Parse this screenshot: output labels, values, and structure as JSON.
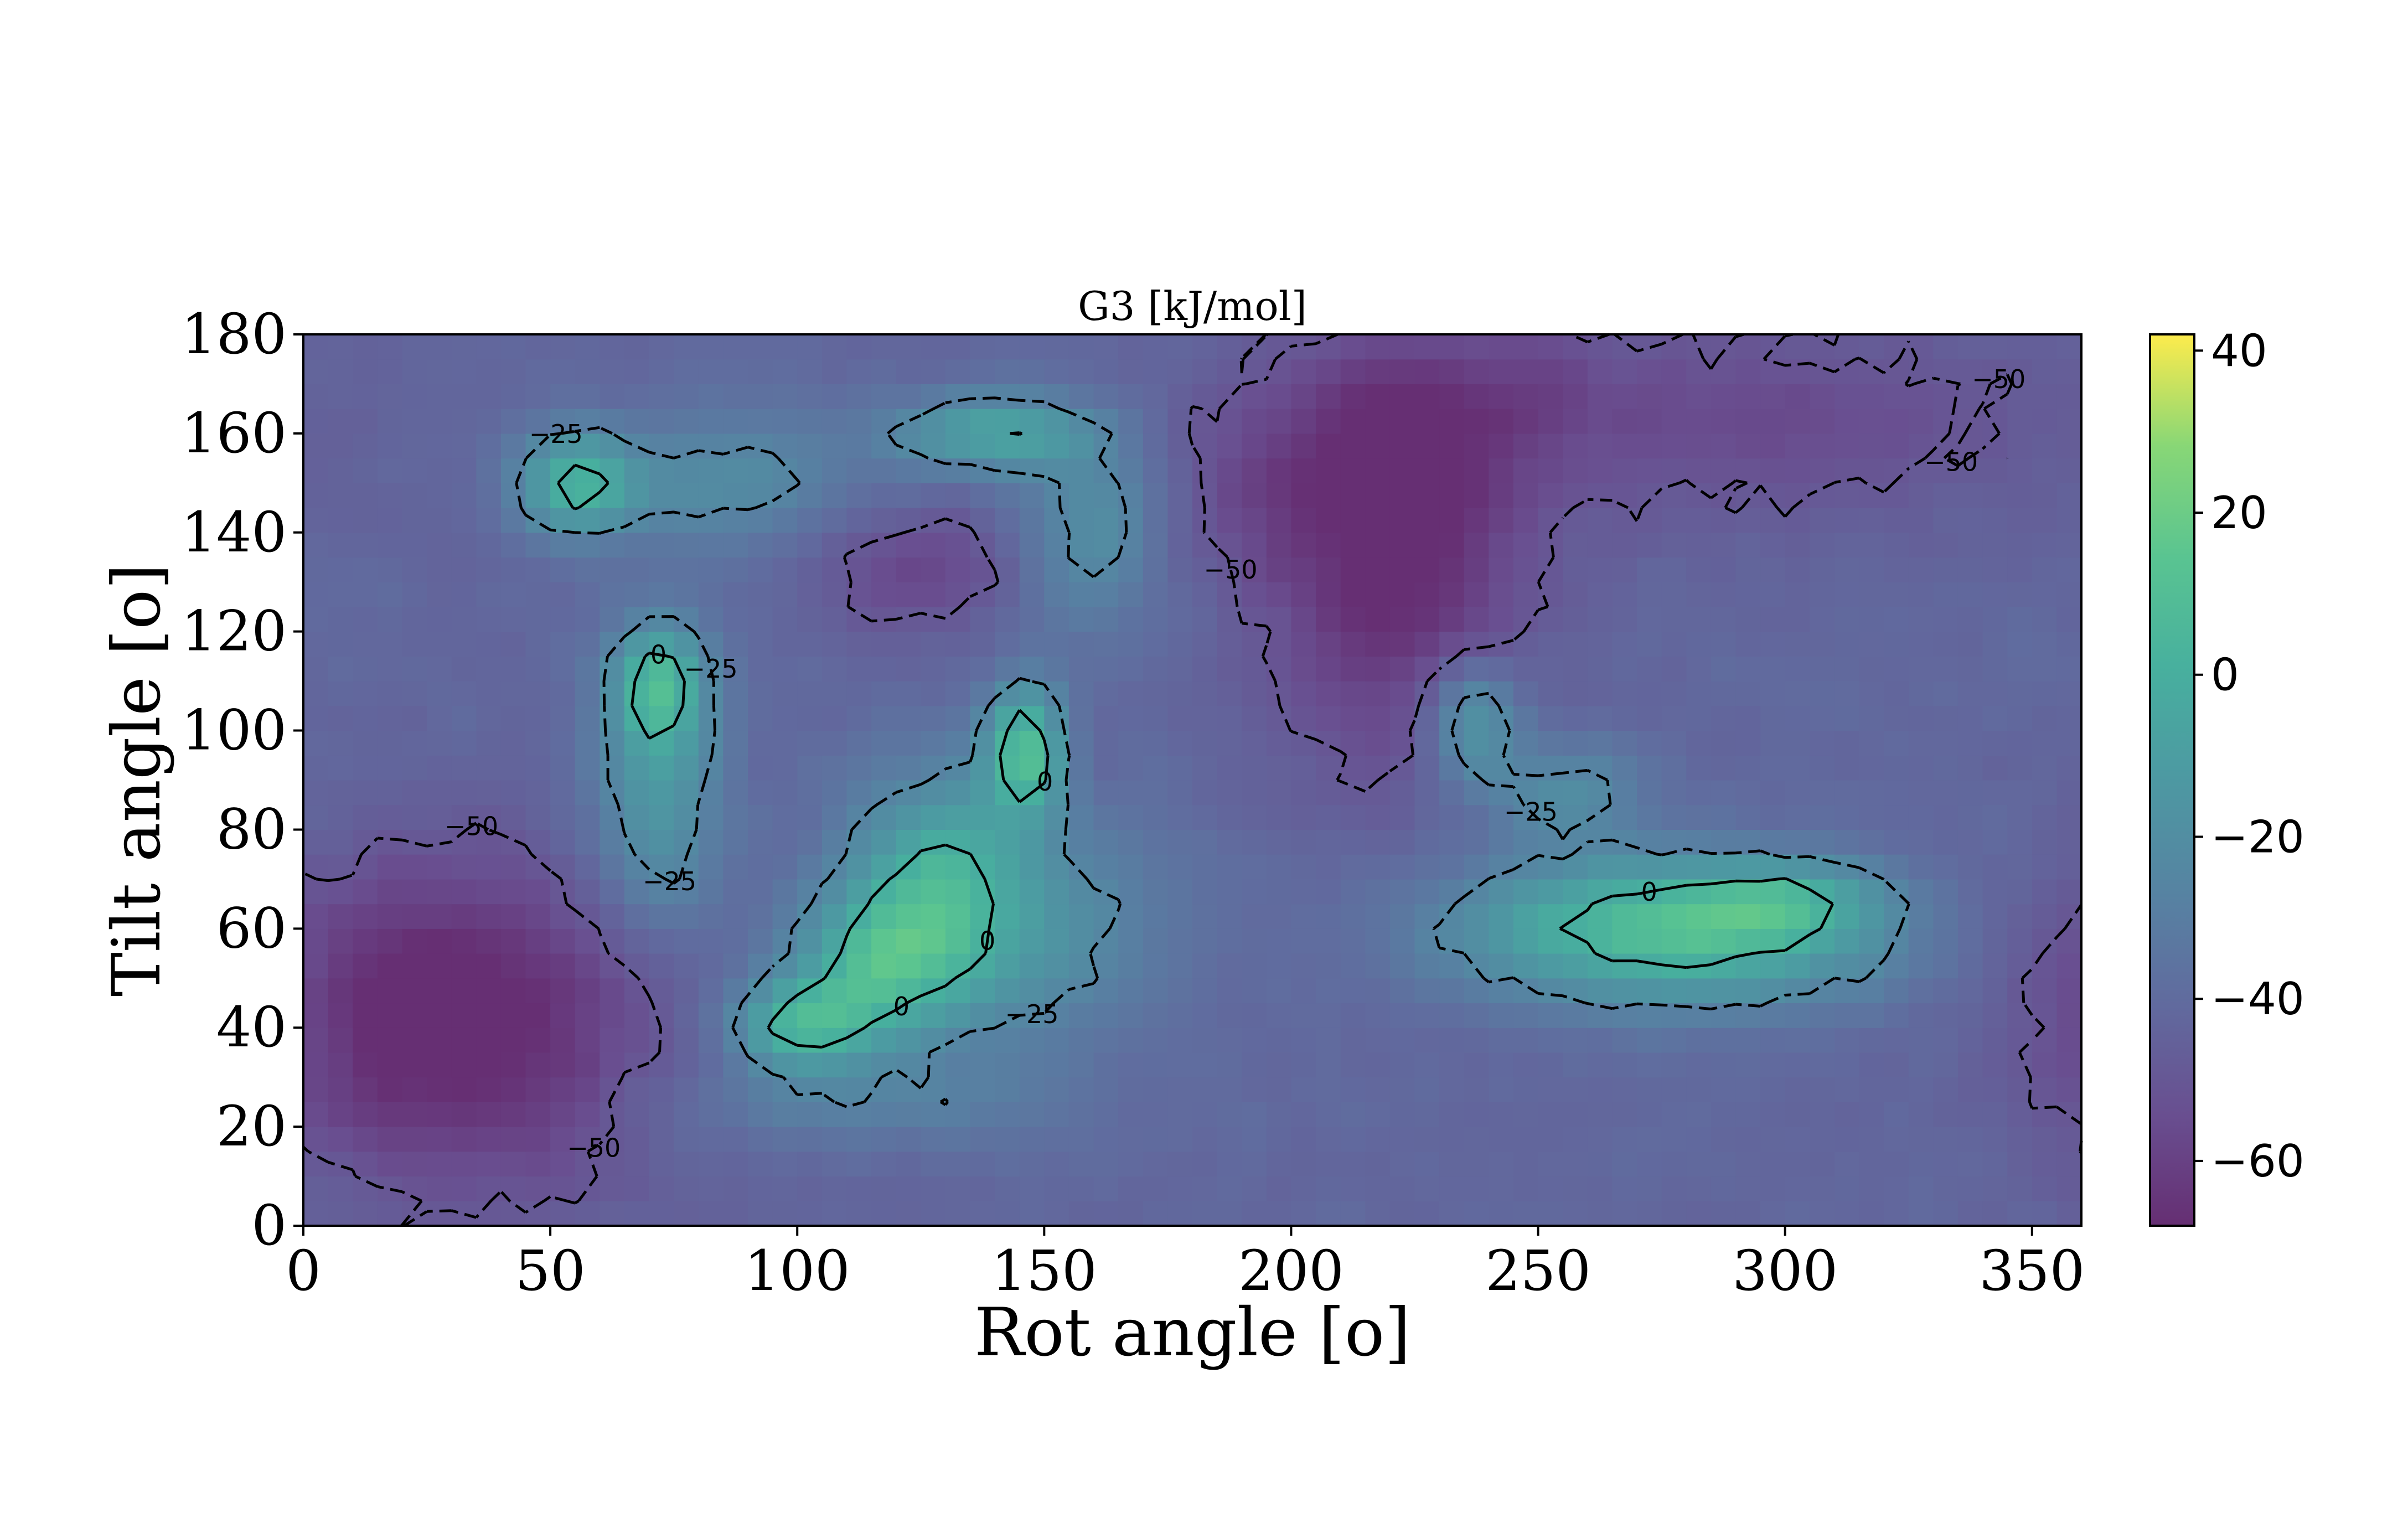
{
  "chart_data": {
    "type": "heatmap",
    "title": "G3 [kJ/mol]",
    "xlabel": "Rot angle [$^o$]",
    "xlabel_display": "Rot angle [o]",
    "ylabel": "Tilt angle [$^o$]",
    "ylabel_display": "Tilt angle [o]",
    "xlim": [
      0,
      360
    ],
    "ylim": [
      0,
      180
    ],
    "xticks": [
      0,
      50,
      100,
      150,
      200,
      250,
      300,
      350
    ],
    "xtick_labels": [
      "0",
      "50",
      "100",
      "150",
      "200",
      "250",
      "300",
      "350"
    ],
    "yticks": [
      0,
      20,
      40,
      60,
      80,
      100,
      120,
      140,
      160,
      180
    ],
    "ytick_labels": [
      "0",
      "20",
      "40",
      "60",
      "80",
      "100",
      "120",
      "140",
      "160",
      "180"
    ],
    "colormap": "viridis",
    "color_range": [
      -68,
      42
    ],
    "colorbar_ticks": [
      40,
      20,
      0,
      -20,
      -40,
      -60
    ],
    "colorbar_tick_labels": [
      "40",
      "20",
      "0",
      "−20",
      "−40",
      "−60"
    ],
    "contour_levels": [
      -50,
      -25,
      0
    ],
    "contour_labels": [
      "−50",
      "−25",
      "0"
    ],
    "grid": false,
    "features": [
      {
        "kind": "min",
        "x": 35,
        "y": 38,
        "sx": 28,
        "sy": 22,
        "amp": -26
      },
      {
        "kind": "min",
        "x": 20,
        "y": 50,
        "sx": 18,
        "sy": 18,
        "amp": -10
      },
      {
        "kind": "min",
        "x": 220,
        "y": 128,
        "sx": 18,
        "sy": 25,
        "amp": -24
      },
      {
        "kind": "min",
        "x": 210,
        "y": 150,
        "sx": 30,
        "sy": 14,
        "amp": -14
      },
      {
        "kind": "min",
        "x": 125,
        "y": 133,
        "sx": 14,
        "sy": 9,
        "amp": -16
      },
      {
        "kind": "min",
        "x": 300,
        "y": 162,
        "sx": 40,
        "sy": 14,
        "amp": -14
      },
      {
        "kind": "min",
        "x": 230,
        "y": 170,
        "sx": 25,
        "sy": 10,
        "amp": -12
      },
      {
        "kind": "max",
        "x": 146,
        "y": 96,
        "sx": 5,
        "sy": 9,
        "amp": 58
      },
      {
        "kind": "max",
        "x": 100,
        "y": 40,
        "sx": 10,
        "sy": 6,
        "amp": 44
      },
      {
        "kind": "max",
        "x": 128,
        "y": 68,
        "sx": 13,
        "sy": 17,
        "amp": 38
      },
      {
        "kind": "max",
        "x": 114,
        "y": 52,
        "sx": 12,
        "sy": 10,
        "amp": 36
      },
      {
        "kind": "max",
        "x": 270,
        "y": 60,
        "sx": 27,
        "sy": 10,
        "amp": 48
      },
      {
        "kind": "max",
        "x": 300,
        "y": 66,
        "sx": 14,
        "sy": 5,
        "amp": 26
      },
      {
        "kind": "max",
        "x": 237,
        "y": 102,
        "sx": 6,
        "sy": 8,
        "amp": 36
      },
      {
        "kind": "max",
        "x": 255,
        "y": 88,
        "sx": 12,
        "sy": 7,
        "amp": 22
      },
      {
        "kind": "max",
        "x": 72,
        "y": 110,
        "sx": 6,
        "sy": 8,
        "amp": 44
      },
      {
        "kind": "max",
        "x": 72,
        "y": 88,
        "sx": 9,
        "sy": 20,
        "amp": 30
      },
      {
        "kind": "max",
        "x": 55,
        "y": 150,
        "sx": 8,
        "sy": 7,
        "amp": 44
      },
      {
        "kind": "max",
        "x": 140,
        "y": 160,
        "sx": 14,
        "sy": 5,
        "amp": 42
      },
      {
        "kind": "max",
        "x": 160,
        "y": 140,
        "sx": 10,
        "sy": 14,
        "amp": 26
      },
      {
        "kind": "max",
        "x": 85,
        "y": 150,
        "sx": 20,
        "sy": 9,
        "amp": 22
      },
      {
        "kind": "max",
        "x": 150,
        "y": 60,
        "sx": 20,
        "sy": 16,
        "amp": 20
      },
      {
        "kind": "max",
        "x": 110,
        "y": 25,
        "sx": 30,
        "sy": 6,
        "amp": 15
      },
      {
        "kind": "max",
        "x": 300,
        "y": 57,
        "sx": 22,
        "sy": 10,
        "amp": 14
      }
    ]
  }
}
